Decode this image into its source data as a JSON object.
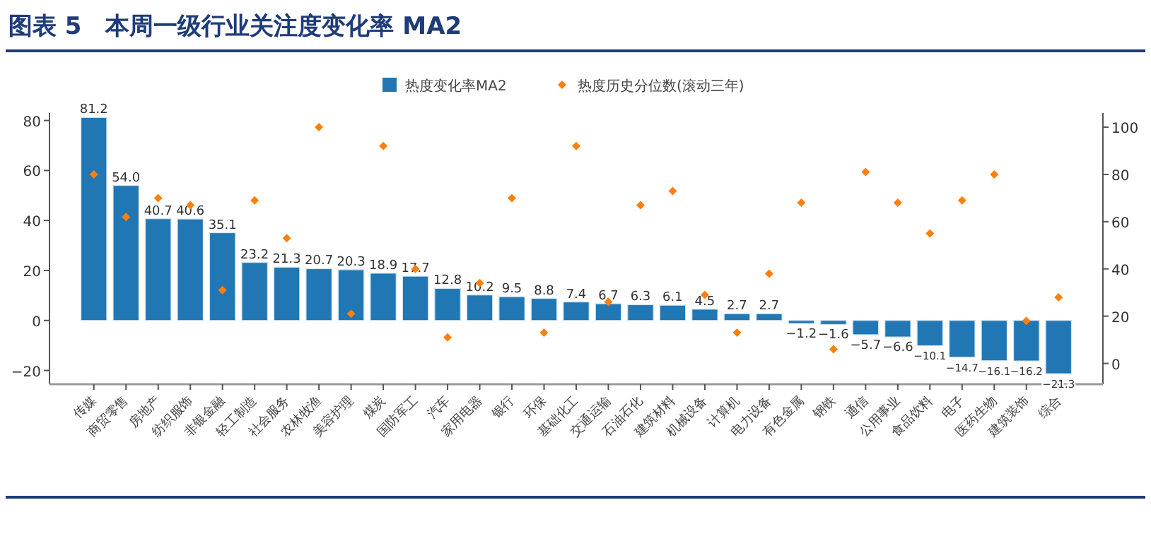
{
  "chart_data": {
    "type": "bar",
    "title": "图表 5　本周一级行业关注度变化率 MA2",
    "categories": [
      "传媒",
      "商贸零售",
      "房地产",
      "纺织服饰",
      "非银金融",
      "轻工制造",
      "社会服务",
      "农林牧渔",
      "美容护理",
      "煤炭",
      "国防军工",
      "汽车",
      "家用电器",
      "银行",
      "环保",
      "基础化工",
      "交通运输",
      "石油石化",
      "建筑材料",
      "机械设备",
      "计算机",
      "电力设备",
      "有色金属",
      "钢铁",
      "通信",
      "公用事业",
      "食品饮料",
      "电子",
      "医药生物",
      "建筑装饰",
      "综合"
    ],
    "series": [
      {
        "name": "热度变化率MA2",
        "color": "#2077b4",
        "values": [
          81.2,
          54.0,
          40.7,
          40.6,
          35.1,
          23.2,
          21.3,
          20.7,
          20.3,
          18.9,
          17.7,
          12.8,
          10.2,
          9.5,
          8.8,
          7.4,
          6.7,
          6.3,
          6.1,
          4.5,
          2.7,
          2.7,
          -1.2,
          -1.6,
          -5.7,
          -6.6,
          -10.1,
          -14.7,
          -16.1,
          -16.2,
          -21.3
        ],
        "value_labels": [
          "81.2",
          "54.0",
          "40.7",
          "40.6",
          "35.1",
          "23.2",
          "21.3",
          "20.7",
          "20.3",
          "18.9",
          "17.7",
          "12.8",
          "10.2",
          "9.5",
          "8.8",
          "7.4",
          "6.7",
          "6.3",
          "6.1",
          "4.5",
          "2.7",
          "2.7",
          "−1.2",
          "−1.6",
          "−5.7",
          "−6.6",
          "−10.1",
          "−14.7",
          "−16.1",
          "−16.2",
          "−21.3"
        ]
      },
      {
        "name": "热度历史分位数(滚动三年)",
        "type": "scatter",
        "axis": "y2",
        "marker": "diamond",
        "color": "#ff7f0e",
        "values": [
          80,
          62,
          70,
          67,
          31,
          69,
          53,
          100,
          21,
          92,
          40,
          11,
          34,
          70,
          13,
          92,
          26,
          67,
          73,
          29,
          13,
          38,
          68,
          6,
          81,
          68,
          55,
          69,
          80,
          18,
          28
        ]
      }
    ],
    "ylim": [
      -25.5,
      83
    ],
    "yticks": [
      -20,
      0,
      20,
      40,
      60,
      80
    ],
    "y2lim": [
      -8.8,
      106
    ],
    "y2ticks": [
      0,
      20,
      40,
      60,
      80,
      100
    ],
    "legend": "top"
  }
}
